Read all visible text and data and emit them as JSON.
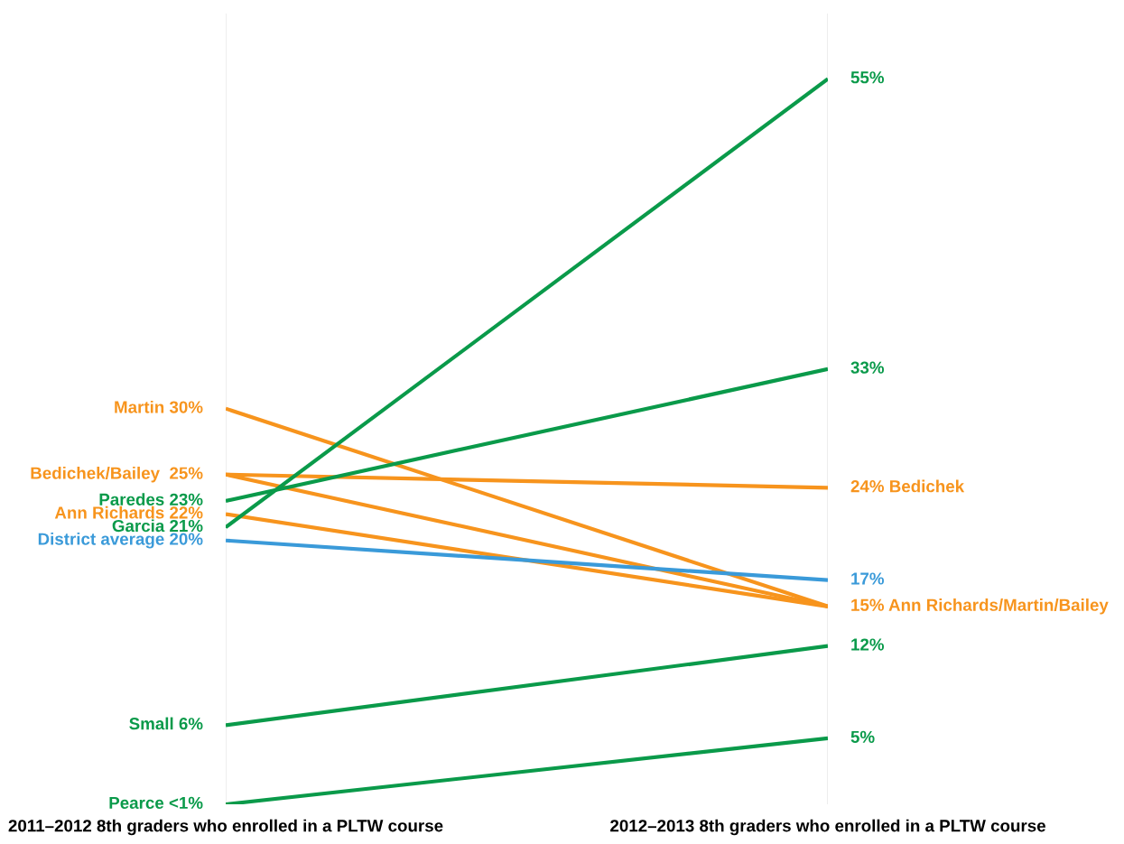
{
  "chart_data": {
    "type": "line",
    "categories": [
      "2011–2012 8th graders who enrolled in a PLTW course",
      "2012–2013 8th graders who enrolled in a PLTW course"
    ],
    "series": [
      {
        "color": "#f7941d",
        "values": [
          30,
          15
        ],
        "value_labels": [
          "Martin 30%",
          null
        ]
      },
      {
        "color": "#f7941d",
        "values": [
          25,
          24
        ],
        "value_labels": [
          "Bedichek/Bailey  25%",
          "24% Bedichek"
        ]
      },
      {
        "color": "#f7941d",
        "values": [
          25,
          15
        ],
        "value_labels": [
          null,
          "15% Ann Richards/Martin/Bailey"
        ]
      },
      {
        "color": "#f7941d",
        "values": [
          22,
          15
        ],
        "value_labels": [
          "Ann Richards 22%",
          null
        ]
      },
      {
        "color": "#0a9a4a",
        "values": [
          23,
          33
        ],
        "value_labels": [
          "Paredes 23%",
          "33%"
        ]
      },
      {
        "color": "#0a9a4a",
        "values": [
          21,
          55
        ],
        "value_labels": [
          "Garcia 21%",
          "55%"
        ]
      },
      {
        "color": "#3a9ad9",
        "values": [
          20,
          17
        ],
        "value_labels": [
          "District average 20%",
          "17%"
        ]
      },
      {
        "color": "#0a9a4a",
        "values": [
          6,
          12
        ],
        "value_labels": [
          "Small 6%",
          "12%"
        ]
      },
      {
        "color": "#0a9a4a",
        "values": [
          0,
          5
        ],
        "value_labels": [
          "Pearce <1%",
          "5%"
        ]
      }
    ],
    "grid": "x",
    "tick_labels": "x",
    "marker": "none",
    "line_style": "solid",
    "legend": false
  }
}
